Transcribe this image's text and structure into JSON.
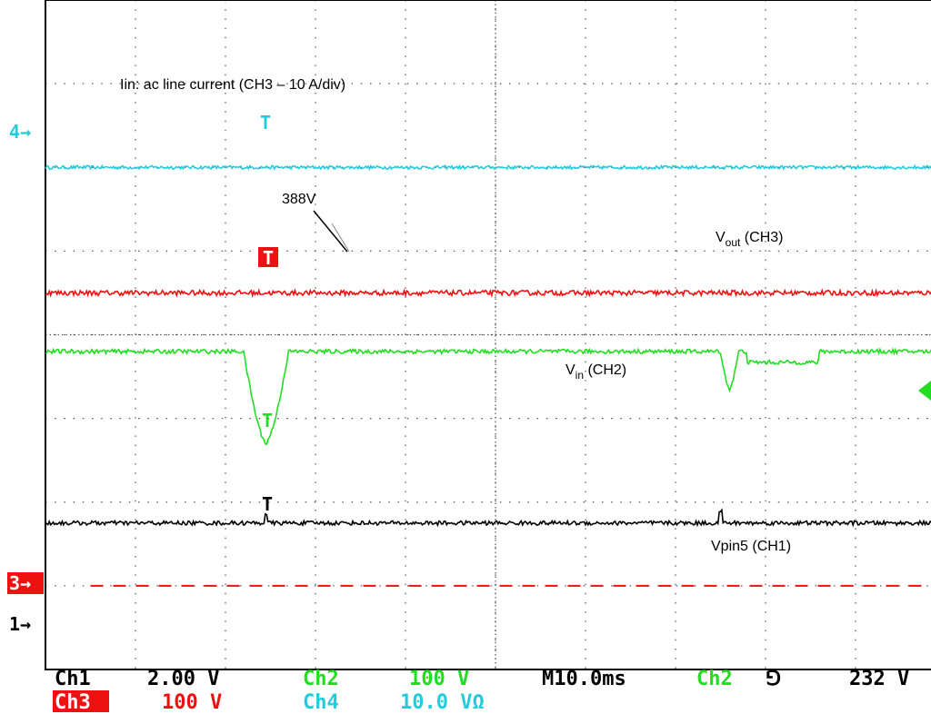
{
  "chart_data": {
    "type": "line",
    "annotations": {
      "iin": "Iin: ac line current (CH3 – 10 A/div)",
      "v388": "388V",
      "vout_main": "V",
      "vout_sub": "out",
      "vout_tail": " (CH3)",
      "vin_main": "V",
      "vin_sub": "in",
      "vin_tail": " (CH2)",
      "vpin5": "Vpin5 (CH1)"
    },
    "markers": {
      "ch4": "4→",
      "ch3": "3→",
      "ch1": "1→",
      "trig_glyph": "T"
    },
    "readout": {
      "row1": {
        "ch1_label": "Ch1",
        "ch1_value": "2.00 V",
        "ch2_label": "Ch2",
        "ch2_value": "100 V",
        "timebase": "M10.0ms",
        "trig_src": "Ch2",
        "trig_slope": "⅁",
        "trig_level": "232 V"
      },
      "row2": {
        "ch3_label": "Ch3",
        "ch3_value": "100 V",
        "ch4_label": "Ch4",
        "ch4_value": "10.0 VΩ"
      }
    },
    "colors": {
      "ch1": "#000000",
      "ch2": "#22dd22",
      "ch3": "#ee1111",
      "ch4": "#22ccdd",
      "grid": "#555555"
    },
    "grid": {
      "divisions_x": 10,
      "divisions_y": 8,
      "on": true
    },
    "series": [
      {
        "channel": "Ch4",
        "kind": "flat",
        "level_div": 6.0,
        "noise": 0.02
      },
      {
        "channel": "Ch3",
        "kind": "flat",
        "level_div": 4.5,
        "noise": 0.03
      },
      {
        "channel": "Ch2",
        "kind": "dips",
        "level_div": 3.8,
        "noise": 0.025,
        "dips": [
          {
            "center_div": 2.45,
            "width_div": 0.5,
            "depth_div": 1.1
          },
          {
            "center_div": 7.6,
            "width_div": 0.2,
            "depth_div": 0.45
          }
        ],
        "sag": {
          "start_div": 7.8,
          "end_div": 8.6,
          "depth_div": 0.13
        }
      },
      {
        "channel": "Ch1",
        "kind": "flat",
        "level_div": 1.75,
        "noise": 0.025,
        "spikes": [
          {
            "pos_div": 2.45,
            "height_div": 0.12
          },
          {
            "pos_div": 7.5,
            "height_div": 0.14
          }
        ]
      },
      {
        "channel": "Ch3",
        "kind": "dashed",
        "level_div": 1.0
      }
    ]
  }
}
